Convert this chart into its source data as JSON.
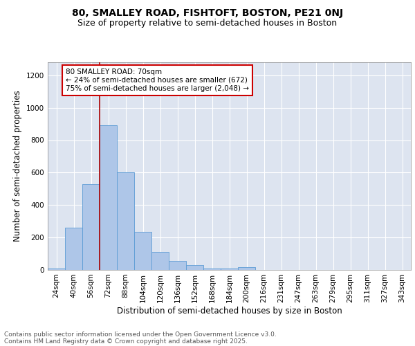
{
  "title_line1": "80, SMALLEY ROAD, FISHTOFT, BOSTON, PE21 0NJ",
  "title_line2": "Size of property relative to semi-detached houses in Boston",
  "xlabel": "Distribution of semi-detached houses by size in Boston",
  "ylabel": "Number of semi-detached properties",
  "categories": [
    "24sqm",
    "40sqm",
    "56sqm",
    "72sqm",
    "88sqm",
    "104sqm",
    "120sqm",
    "136sqm",
    "152sqm",
    "168sqm",
    "184sqm",
    "200sqm",
    "216sqm",
    "231sqm",
    "247sqm",
    "263sqm",
    "279sqm",
    "295sqm",
    "311sqm",
    "327sqm",
    "343sqm"
  ],
  "values": [
    10,
    260,
    530,
    890,
    600,
    235,
    110,
    55,
    30,
    10,
    10,
    15,
    2,
    2,
    1,
    1,
    1,
    0,
    0,
    0,
    0
  ],
  "bar_color": "#aec6e8",
  "bar_edge_color": "#5b9bd5",
  "property_line_x": 2.5,
  "annotation_box_text": "80 SMALLEY ROAD: 70sqm\n← 24% of semi-detached houses are smaller (672)\n75% of semi-detached houses are larger (2,048) →",
  "annotation_box_color": "#ffffff",
  "annotation_box_edge_color": "#cc0000",
  "footer_line1": "Contains HM Land Registry data © Crown copyright and database right 2025.",
  "footer_line2": "Contains public sector information licensed under the Open Government Licence v3.0.",
  "ylim": [
    0,
    1280
  ],
  "yticks": [
    0,
    200,
    400,
    600,
    800,
    1000,
    1200
  ],
  "background_color": "#dde4f0",
  "grid_color": "#ffffff",
  "title_fontsize": 10,
  "subtitle_fontsize": 9,
  "axis_label_fontsize": 8.5,
  "tick_fontsize": 7.5,
  "footer_fontsize": 6.5,
  "annotation_fontsize": 7.5
}
